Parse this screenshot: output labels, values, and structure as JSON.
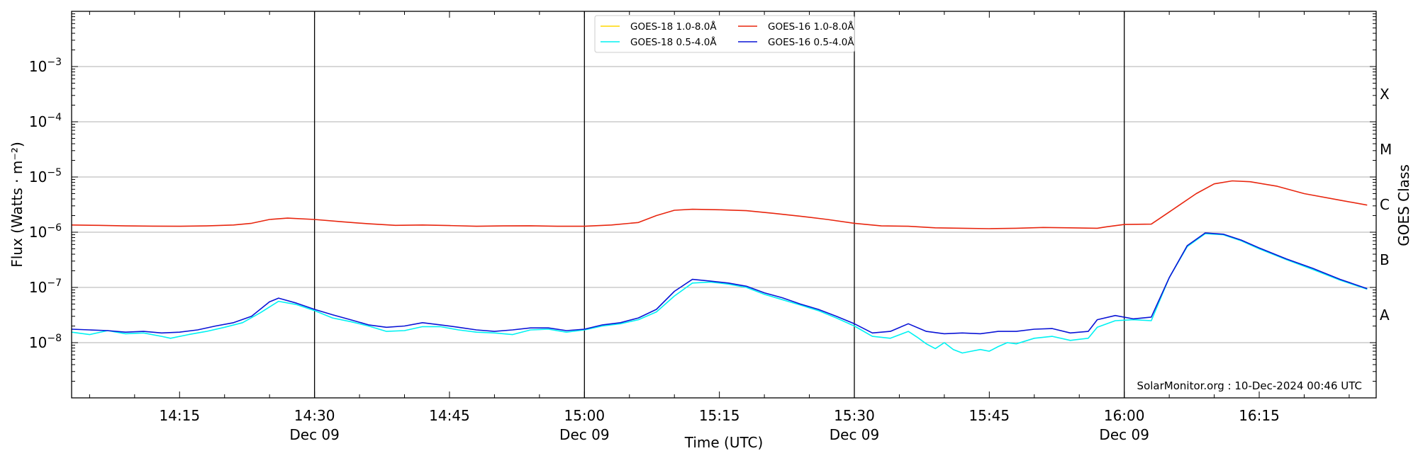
{
  "chart_data": {
    "type": "line",
    "title": "",
    "xlabel": "Time (UTC)",
    "ylabel": "Flux (Watts · m⁻²)",
    "y2label": "GOES Class",
    "yscale": "log",
    "ylim": [
      1e-09,
      0.01
    ],
    "xlim": [
      "14:03",
      "16:28"
    ],
    "grid": "horizontal",
    "legend_position": "top-center",
    "credit": "SolarMonitor.org : 10-Dec-2024 00:46 UTC",
    "y_ticks": [
      {
        "value": 1e-08,
        "base": "10",
        "exp": "−8"
      },
      {
        "value": 1e-07,
        "base": "10",
        "exp": "−7"
      },
      {
        "value": 1e-06,
        "base": "10",
        "exp": "−6"
      },
      {
        "value": 1e-05,
        "base": "10",
        "exp": "−5"
      },
      {
        "value": 0.0001,
        "base": "10",
        "exp": "−4"
      },
      {
        "value": 0.001,
        "base": "10",
        "exp": "−3"
      }
    ],
    "x_ticks": [
      {
        "time": "14:15",
        "label": "14:15",
        "date": ""
      },
      {
        "time": "14:30",
        "label": "14:30",
        "date": "Dec 09"
      },
      {
        "time": "14:45",
        "label": "14:45",
        "date": ""
      },
      {
        "time": "15:00",
        "label": "15:00",
        "date": "Dec 09"
      },
      {
        "time": "15:15",
        "label": "15:15",
        "date": ""
      },
      {
        "time": "15:30",
        "label": "15:30",
        "date": "Dec 09"
      },
      {
        "time": "15:45",
        "label": "15:45",
        "date": ""
      },
      {
        "time": "16:00",
        "label": "16:00",
        "date": "Dec 09"
      },
      {
        "time": "16:15",
        "label": "16:15",
        "date": ""
      }
    ],
    "vertical_lines": [
      "14:30",
      "15:00",
      "15:30",
      "16:00"
    ],
    "goes_classes": [
      {
        "label": "A",
        "value": 1e-08
      },
      {
        "label": "B",
        "value": 1e-07
      },
      {
        "label": "C",
        "value": 1e-06
      },
      {
        "label": "M",
        "value": 1e-05
      },
      {
        "label": "X",
        "value": 0.0001
      }
    ],
    "series": [
      {
        "name": "GOES-18 1.0-8.0Å",
        "color": "#ffd700",
        "x": [],
        "y": []
      },
      {
        "name": "GOES-16 1.0-8.0Å",
        "color": "#e8260f",
        "x": [
          "14:03",
          "14:06",
          "14:09",
          "14:12",
          "14:15",
          "14:18",
          "14:21",
          "14:23",
          "14:25",
          "14:27",
          "14:30",
          "14:33",
          "14:36",
          "14:39",
          "14:42",
          "14:45",
          "14:48",
          "14:51",
          "14:54",
          "14:57",
          "15:00",
          "15:03",
          "15:06",
          "15:08",
          "15:10",
          "15:12",
          "15:15",
          "15:18",
          "15:21",
          "15:24",
          "15:27",
          "15:30",
          "15:33",
          "15:36",
          "15:39",
          "15:42",
          "15:45",
          "15:48",
          "15:51",
          "15:54",
          "15:57",
          "15:58",
          "16:00",
          "16:03",
          "16:04",
          "16:06",
          "16:08",
          "16:10",
          "16:12",
          "16:14",
          "16:17",
          "16:20",
          "16:24",
          "16:27"
        ],
        "y": [
          1.35e-06,
          1.33e-06,
          1.3e-06,
          1.29e-06,
          1.28e-06,
          1.3e-06,
          1.35e-06,
          1.45e-06,
          1.7e-06,
          1.8e-06,
          1.7e-06,
          1.55e-06,
          1.42e-06,
          1.33e-06,
          1.35e-06,
          1.32e-06,
          1.28e-06,
          1.3e-06,
          1.31e-06,
          1.28e-06,
          1.28e-06,
          1.35e-06,
          1.5e-06,
          2e-06,
          2.5e-06,
          2.6e-06,
          2.55e-06,
          2.45e-06,
          2.2e-06,
          1.95e-06,
          1.7e-06,
          1.45e-06,
          1.3e-06,
          1.28e-06,
          1.2e-06,
          1.18e-06,
          1.16e-06,
          1.18e-06,
          1.22e-06,
          1.2e-06,
          1.18e-06,
          1.25e-06,
          1.38e-06,
          1.4e-06,
          1.8e-06,
          3e-06,
          5e-06,
          7.5e-06,
          8.5e-06,
          8.2e-06,
          6.8e-06,
          5e-06,
          3.8e-06,
          3.1e-06
        ]
      },
      {
        "name": "GOES-18 0.5-4.0Å",
        "color": "#00f2f2",
        "x": [
          "14:03",
          "14:05",
          "14:07",
          "14:09",
          "14:11",
          "14:13",
          "14:14",
          "14:16",
          "14:18",
          "14:20",
          "14:22",
          "14:24",
          "14:26",
          "14:28",
          "14:30",
          "14:32",
          "14:34",
          "14:36",
          "14:38",
          "14:40",
          "14:42",
          "14:44",
          "14:46",
          "14:48",
          "14:50",
          "14:52",
          "14:54",
          "14:56",
          "14:58",
          "15:00",
          "15:02",
          "15:04",
          "15:06",
          "15:08",
          "15:10",
          "15:12",
          "15:14",
          "15:16",
          "15:18",
          "15:20",
          "15:22",
          "15:24",
          "15:26",
          "15:28",
          "15:30",
          "15:32",
          "15:34",
          "15:36",
          "15:37",
          "15:38",
          "15:39",
          "15:40",
          "15:41",
          "15:42",
          "15:43",
          "15:44",
          "15:45",
          "15:46",
          "15:47",
          "15:48",
          "15:50",
          "15:52",
          "15:54",
          "15:56",
          "15:57",
          "15:59",
          "16:01",
          "16:03",
          "16:05",
          "16:07",
          "16:09",
          "16:11",
          "16:13",
          "16:15",
          "16:18",
          "16:21",
          "16:24",
          "16:27"
        ],
        "y": [
          1.55e-08,
          1.4e-08,
          1.65e-08,
          1.45e-08,
          1.5e-08,
          1.3e-08,
          1.2e-08,
          1.4e-08,
          1.6e-08,
          1.9e-08,
          2.3e-08,
          3.5e-08,
          5.6e-08,
          4.9e-08,
          3.8e-08,
          2.8e-08,
          2.4e-08,
          2e-08,
          1.6e-08,
          1.65e-08,
          1.95e-08,
          1.95e-08,
          1.7e-08,
          1.55e-08,
          1.5e-08,
          1.4e-08,
          1.7e-08,
          1.75e-08,
          1.55e-08,
          1.7e-08,
          2e-08,
          2.2e-08,
          2.6e-08,
          3.6e-08,
          7e-08,
          1.2e-07,
          1.25e-07,
          1.15e-07,
          1e-07,
          7.5e-08,
          6e-08,
          4.8e-08,
          3.8e-08,
          2.8e-08,
          2e-08,
          1.3e-08,
          1.2e-08,
          1.6e-08,
          1.25e-08,
          9.5e-09,
          7.8e-09,
          1e-08,
          7.5e-09,
          6.5e-09,
          7e-09,
          7.5e-09,
          7e-09,
          8.5e-09,
          1e-08,
          9.5e-09,
          1.2e-08,
          1.3e-08,
          1.1e-08,
          1.2e-08,
          1.9e-08,
          2.5e-08,
          2.6e-08,
          2.5e-08,
          1.5e-07,
          5.5e-07,
          9.4e-07,
          9e-07,
          7e-07,
          5e-07,
          3.2e-07,
          2.1e-07,
          1.35e-07,
          9.3e-08
        ]
      },
      {
        "name": "GOES-16 0.5-4.0Å",
        "color": "#0a14d6",
        "x": [
          "14:03",
          "14:05",
          "14:07",
          "14:09",
          "14:11",
          "14:13",
          "14:15",
          "14:17",
          "14:19",
          "14:21",
          "14:23",
          "14:25",
          "14:26",
          "14:28",
          "14:30",
          "14:32",
          "14:34",
          "14:36",
          "14:38",
          "14:40",
          "14:42",
          "14:44",
          "14:46",
          "14:48",
          "14:50",
          "14:52",
          "14:54",
          "14:56",
          "14:58",
          "15:00",
          "15:02",
          "15:04",
          "15:06",
          "15:08",
          "15:10",
          "15:12",
          "15:14",
          "15:16",
          "15:18",
          "15:20",
          "15:22",
          "15:24",
          "15:26",
          "15:28",
          "15:30",
          "15:32",
          "15:34",
          "15:36",
          "15:38",
          "15:40",
          "15:42",
          "15:44",
          "15:46",
          "15:48",
          "15:50",
          "15:52",
          "15:54",
          "15:56",
          "15:57",
          "15:59",
          "16:01",
          "16:03",
          "16:05",
          "16:07",
          "16:09",
          "16:11",
          "16:13",
          "16:15",
          "16:18",
          "16:21",
          "16:24",
          "16:27"
        ],
        "y": [
          1.75e-08,
          1.7e-08,
          1.65e-08,
          1.55e-08,
          1.6e-08,
          1.5e-08,
          1.55e-08,
          1.7e-08,
          2e-08,
          2.3e-08,
          3e-08,
          5.5e-08,
          6.4e-08,
          5.2e-08,
          4e-08,
          3.2e-08,
          2.6e-08,
          2.1e-08,
          1.9e-08,
          2e-08,
          2.3e-08,
          2.1e-08,
          1.9e-08,
          1.7e-08,
          1.6e-08,
          1.7e-08,
          1.85e-08,
          1.85e-08,
          1.65e-08,
          1.75e-08,
          2.1e-08,
          2.3e-08,
          2.8e-08,
          4e-08,
          8.5e-08,
          1.4e-07,
          1.3e-07,
          1.2e-07,
          1.05e-07,
          8e-08,
          6.5e-08,
          5e-08,
          4e-08,
          3e-08,
          2.2e-08,
          1.5e-08,
          1.6e-08,
          2.2e-08,
          1.6e-08,
          1.45e-08,
          1.5e-08,
          1.45e-08,
          1.6e-08,
          1.6e-08,
          1.75e-08,
          1.8e-08,
          1.5e-08,
          1.6e-08,
          2.6e-08,
          3.1e-08,
          2.7e-08,
          2.9e-08,
          1.5e-07,
          5.7e-07,
          9.7e-07,
          9.2e-07,
          7.2e-07,
          5.2e-07,
          3.3e-07,
          2.2e-07,
          1.4e-07,
          9.5e-08
        ]
      }
    ]
  }
}
